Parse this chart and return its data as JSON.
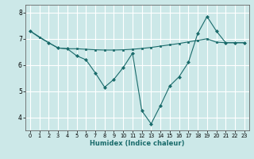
{
  "xlabel": "Humidex (Indice chaleur)",
  "bg_color": "#cce8e8",
  "grid_color": "#ffffff",
  "line_color": "#1a6b6b",
  "xlim": [
    -0.5,
    23.5
  ],
  "ylim": [
    3.5,
    8.3
  ],
  "yticks": [
    4,
    5,
    6,
    7,
    8
  ],
  "xticks": [
    0,
    1,
    2,
    3,
    4,
    5,
    6,
    7,
    8,
    9,
    10,
    11,
    12,
    13,
    14,
    15,
    16,
    17,
    18,
    19,
    20,
    21,
    22,
    23
  ],
  "line1_x": [
    0,
    1,
    2,
    3,
    4,
    5,
    6,
    7,
    8,
    9,
    10,
    11,
    12,
    13,
    14,
    15,
    16,
    17,
    18,
    19,
    20,
    21,
    22,
    23
  ],
  "line1_y": [
    7.3,
    7.05,
    6.85,
    6.65,
    6.62,
    6.62,
    6.6,
    6.58,
    6.57,
    6.57,
    6.58,
    6.6,
    6.63,
    6.67,
    6.72,
    6.77,
    6.82,
    6.88,
    6.94,
    7.0,
    6.87,
    6.85,
    6.85,
    6.85
  ],
  "line2_x": [
    0,
    2,
    3,
    4,
    5,
    6,
    7,
    8,
    9,
    10,
    11,
    12,
    13,
    14,
    15,
    16,
    17,
    18,
    19,
    20,
    21,
    22,
    23
  ],
  "line2_y": [
    7.3,
    6.85,
    6.65,
    6.62,
    6.35,
    6.2,
    5.7,
    5.15,
    5.45,
    5.9,
    6.45,
    4.25,
    3.75,
    4.45,
    5.2,
    5.55,
    6.1,
    7.2,
    7.85,
    7.3,
    6.85,
    6.85,
    6.85
  ]
}
